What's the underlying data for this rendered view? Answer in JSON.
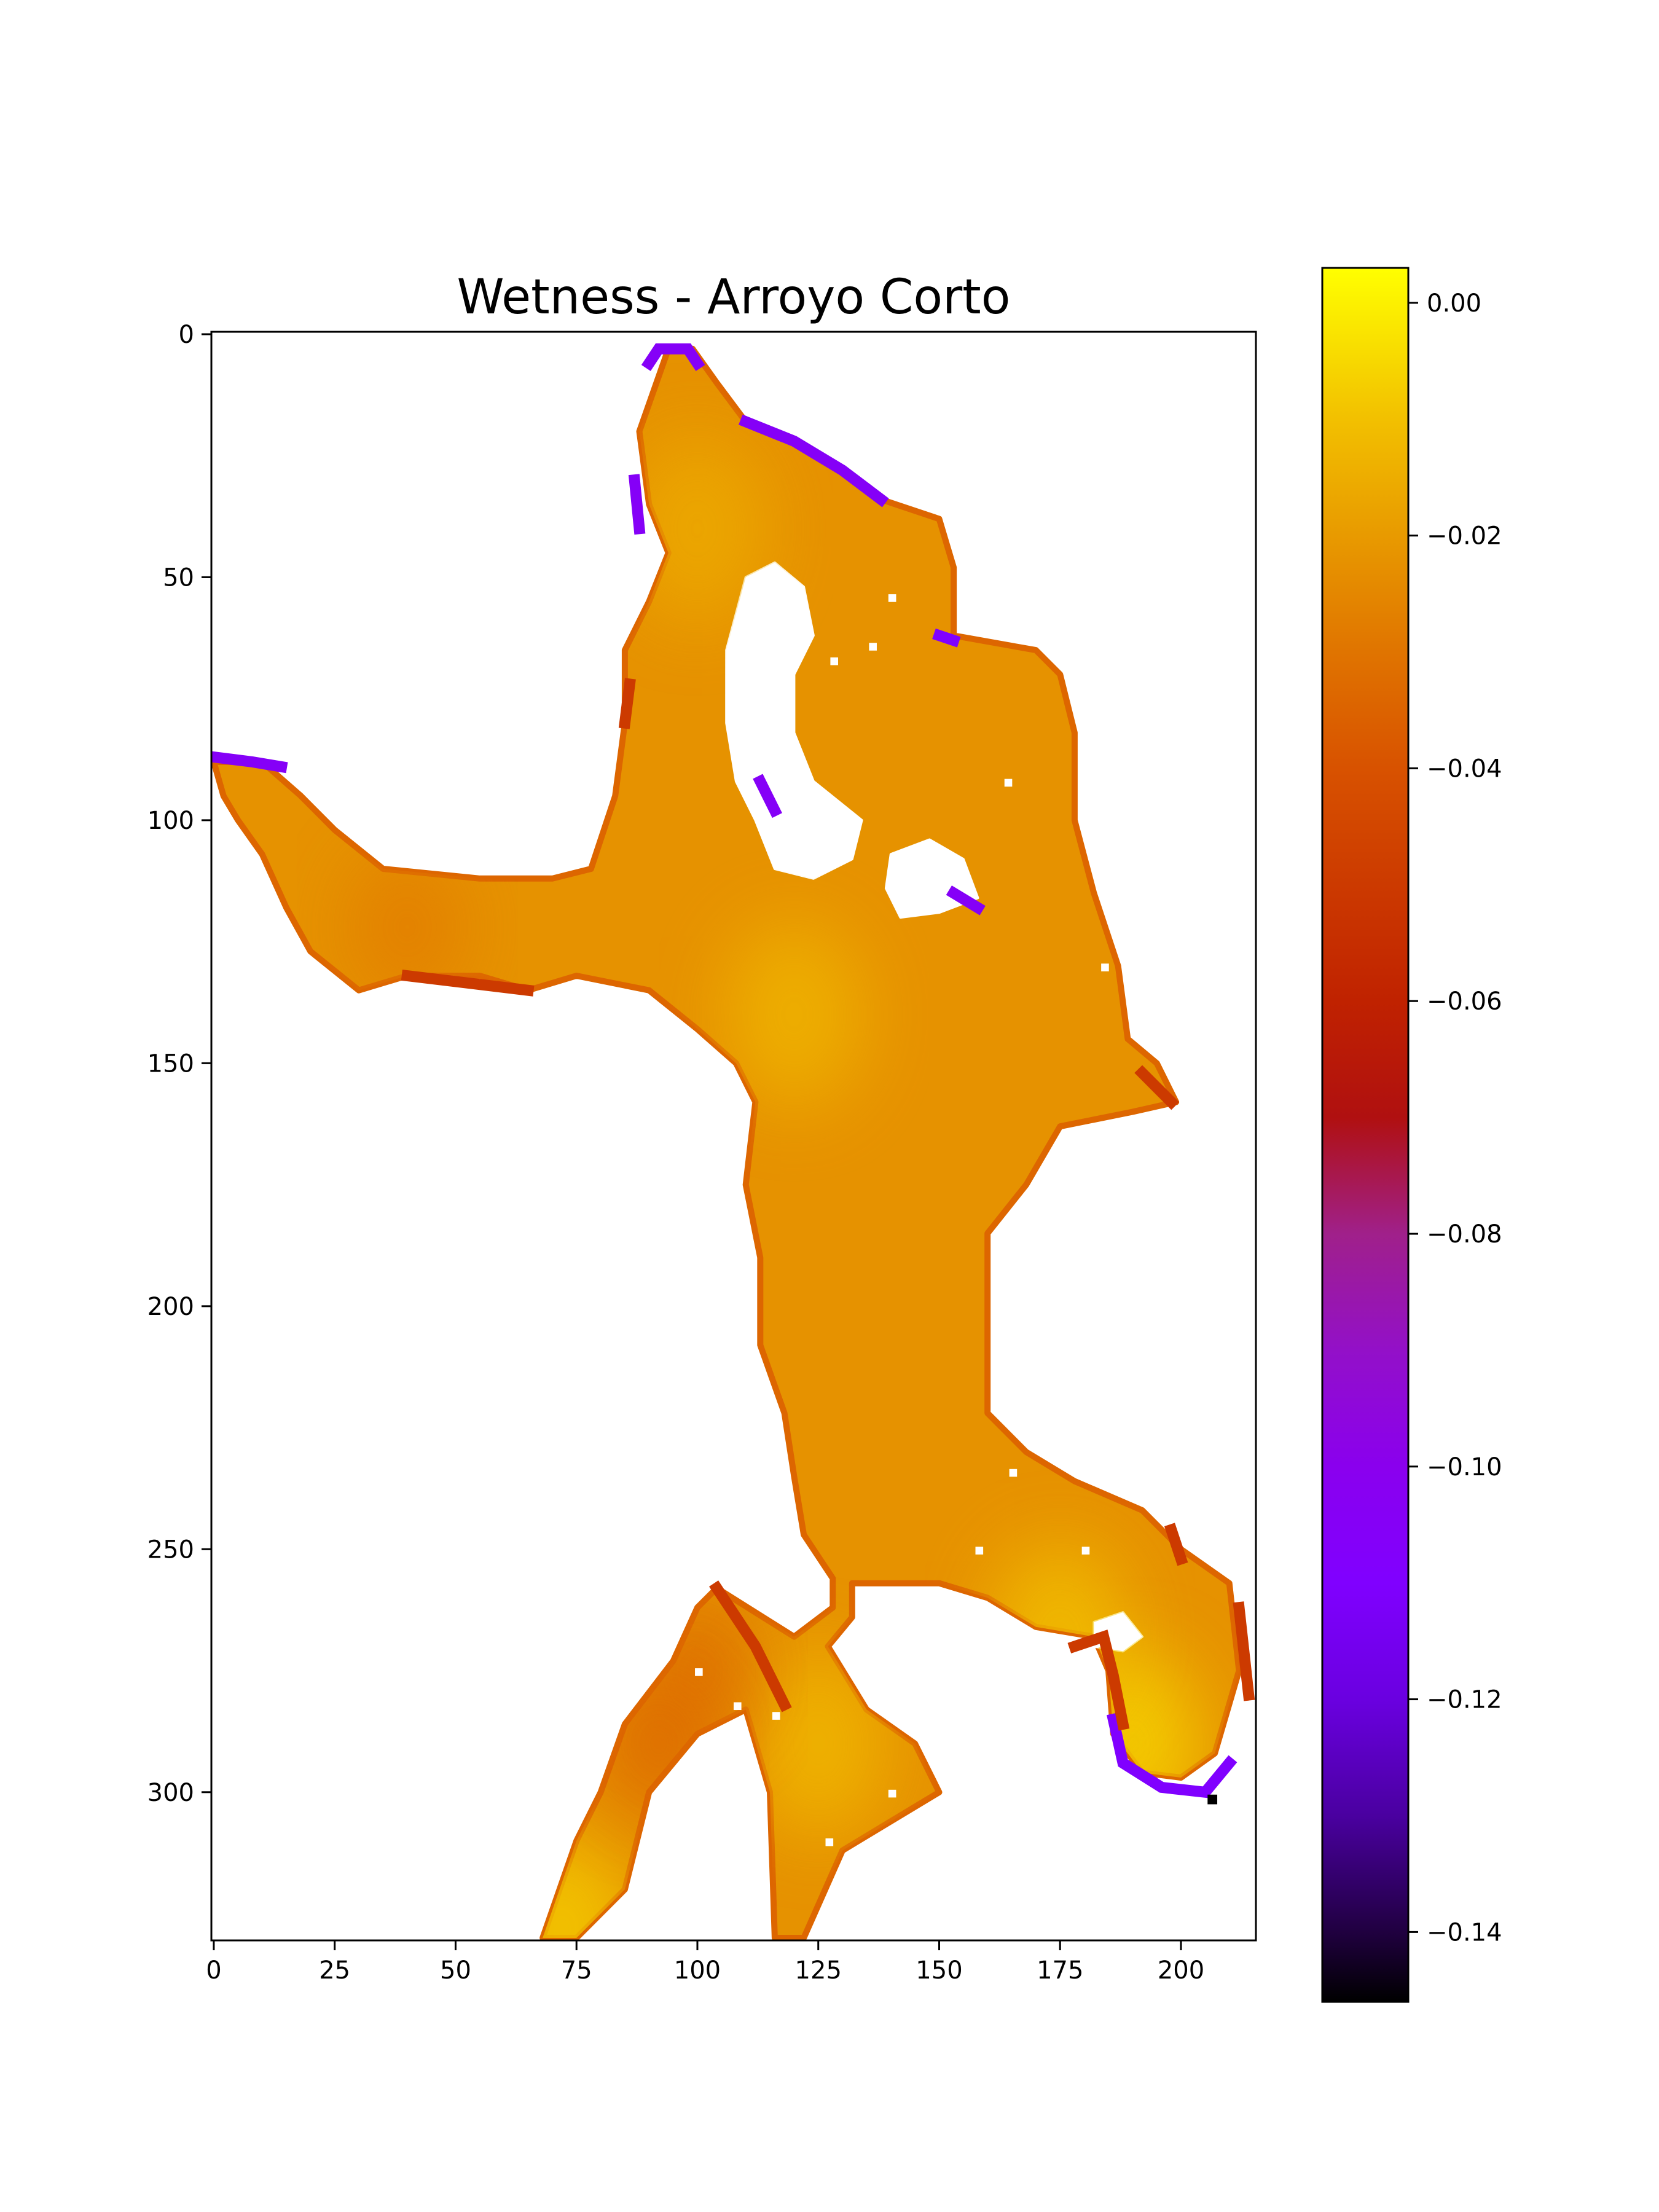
{
  "chart_data": {
    "type": "heatmap",
    "title": "Wetness - Arroyo Corto",
    "xlabel": "",
    "ylabel": "",
    "colormap": "gnuplot",
    "xlim": [
      -0.5,
      215.5
    ],
    "ylim": [
      330.5,
      -0.5
    ],
    "x_ticks": [
      0,
      25,
      50,
      75,
      100,
      125,
      150,
      175,
      200
    ],
    "x_tick_labels": [
      "0",
      "25",
      "50",
      "75",
      "100",
      "125",
      "150",
      "175",
      "200"
    ],
    "y_ticks": [
      0,
      50,
      100,
      150,
      200,
      250,
      300
    ],
    "y_tick_labels": [
      "0",
      "50",
      "100",
      "150",
      "200",
      "250",
      "300"
    ],
    "colorbar": {
      "min": -0.146,
      "max": 0.003,
      "ticks": [
        0.0,
        -0.02,
        -0.04,
        -0.06,
        -0.08,
        -0.1,
        -0.12,
        -0.14
      ],
      "tick_labels": [
        "0.00",
        "−0.02",
        "−0.04",
        "−0.06",
        "−0.08",
        "−0.10",
        "−0.12",
        "−0.14"
      ],
      "stops": [
        {
          "value": 0.003,
          "color": "#ffff00"
        },
        {
          "value": -0.01,
          "color": "#f2c000"
        },
        {
          "value": -0.02,
          "color": "#e89a00"
        },
        {
          "value": -0.03,
          "color": "#e07400"
        },
        {
          "value": -0.04,
          "color": "#d85200"
        },
        {
          "value": -0.05,
          "color": "#cc3a00"
        },
        {
          "value": -0.06,
          "color": "#c02200"
        },
        {
          "value": -0.07,
          "color": "#b01010"
        },
        {
          "value": -0.08,
          "color": "#a0208a"
        },
        {
          "value": -0.09,
          "color": "#9310c8"
        },
        {
          "value": -0.1,
          "color": "#8a00ee"
        },
        {
          "value": -0.11,
          "color": "#8000ff"
        },
        {
          "value": -0.12,
          "color": "#6a00e0"
        },
        {
          "value": -0.13,
          "color": "#4a00a0"
        },
        {
          "value": -0.14,
          "color": "#200040"
        },
        {
          "value": -0.146,
          "color": "#000000"
        }
      ]
    },
    "regions": [
      {
        "name": "lake-body",
        "value": -0.022,
        "outline": [
          [
            94,
            3
          ],
          [
            99,
            3
          ],
          [
            104,
            10
          ],
          [
            110,
            18
          ],
          [
            120,
            22
          ],
          [
            130,
            28
          ],
          [
            138,
            34
          ],
          [
            150,
            38
          ],
          [
            153,
            48
          ],
          [
            153,
            62
          ],
          [
            170,
            65
          ],
          [
            175,
            70
          ],
          [
            178,
            82
          ],
          [
            178,
            100
          ],
          [
            182,
            115
          ],
          [
            187,
            130
          ],
          [
            189,
            145
          ],
          [
            195,
            150
          ],
          [
            199,
            158
          ],
          [
            190,
            160
          ],
          [
            175,
            163
          ],
          [
            168,
            175
          ],
          [
            160,
            185
          ],
          [
            160,
            200
          ],
          [
            160,
            222
          ],
          [
            168,
            230
          ],
          [
            178,
            236
          ],
          [
            192,
            242
          ],
          [
            200,
            250
          ],
          [
            210,
            257
          ],
          [
            212,
            275
          ],
          [
            207,
            292
          ],
          [
            200,
            297
          ],
          [
            192,
            296
          ],
          [
            186,
            288
          ],
          [
            185,
            275
          ],
          [
            182,
            268
          ],
          [
            170,
            266
          ],
          [
            160,
            260
          ],
          [
            150,
            257
          ],
          [
            132,
            257
          ],
          [
            132,
            264
          ],
          [
            127,
            270
          ],
          [
            135,
            283
          ],
          [
            145,
            290
          ],
          [
            150,
            300
          ],
          [
            140,
            306
          ],
          [
            130,
            312
          ],
          [
            122,
            330
          ],
          [
            116,
            330
          ],
          [
            115,
            300
          ],
          [
            110,
            283
          ],
          [
            100,
            288
          ],
          [
            90,
            300
          ],
          [
            85,
            320
          ],
          [
            75,
            330
          ],
          [
            68,
            330
          ],
          [
            75,
            310
          ],
          [
            80,
            300
          ],
          [
            85,
            286
          ],
          [
            95,
            273
          ],
          [
            100,
            262
          ],
          [
            104,
            258
          ],
          [
            120,
            268
          ],
          [
            128,
            262
          ],
          [
            128,
            256
          ],
          [
            122,
            247
          ],
          [
            120,
            235
          ],
          [
            118,
            222
          ],
          [
            113,
            208
          ],
          [
            113,
            190
          ],
          [
            110,
            175
          ],
          [
            112,
            158
          ],
          [
            108,
            150
          ],
          [
            100,
            143
          ],
          [
            90,
            135
          ],
          [
            75,
            132
          ],
          [
            65,
            135
          ],
          [
            55,
            132
          ],
          [
            40,
            132
          ],
          [
            30,
            135
          ],
          [
            20,
            127
          ],
          [
            15,
            118
          ],
          [
            10,
            107
          ],
          [
            5,
            100
          ],
          [
            2,
            95
          ],
          [
            0,
            88
          ],
          [
            10,
            88
          ],
          [
            18,
            95
          ],
          [
            25,
            102
          ],
          [
            35,
            110
          ],
          [
            55,
            112
          ],
          [
            70,
            112
          ],
          [
            78,
            110
          ],
          [
            83,
            95
          ],
          [
            85,
            80
          ],
          [
            85,
            65
          ],
          [
            90,
            55
          ],
          [
            94,
            45
          ],
          [
            90,
            35
          ],
          [
            88,
            20
          ]
        ]
      },
      {
        "name": "interior-hole-north",
        "value": null,
        "outline": [
          [
            110,
            50
          ],
          [
            116,
            47
          ],
          [
            122,
            52
          ],
          [
            124,
            62
          ],
          [
            120,
            70
          ],
          [
            120,
            82
          ],
          [
            124,
            92
          ],
          [
            134,
            100
          ],
          [
            132,
            108
          ],
          [
            124,
            112
          ],
          [
            116,
            110
          ],
          [
            112,
            100
          ],
          [
            108,
            92
          ],
          [
            106,
            80
          ],
          [
            106,
            65
          ]
        ]
      },
      {
        "name": "interior-hole-small",
        "value": null,
        "outline": [
          [
            140,
            107
          ],
          [
            148,
            104
          ],
          [
            155,
            108
          ],
          [
            158,
            116
          ],
          [
            150,
            119
          ],
          [
            142,
            120
          ],
          [
            139,
            114
          ]
        ]
      },
      {
        "name": "interior-hole-southeast",
        "value": null,
        "outline": [
          [
            182,
            265
          ],
          [
            188,
            263
          ],
          [
            192,
            268
          ],
          [
            188,
            271
          ],
          [
            182,
            270
          ]
        ]
      }
    ],
    "gradient_hotspots": [
      {
        "x": 120,
        "y": 140,
        "value": -0.012
      },
      {
        "x": 100,
        "y": 40,
        "value": -0.015
      },
      {
        "x": 190,
        "y": 290,
        "value": -0.004
      },
      {
        "x": 175,
        "y": 268,
        "value": -0.009
      },
      {
        "x": 125,
        "y": 290,
        "value": -0.011
      },
      {
        "x": 72,
        "y": 328,
        "value": -0.006
      }
    ],
    "shaded_patches": [
      {
        "x": 100,
        "y": 275,
        "value": -0.032
      },
      {
        "x": 92,
        "y": 290,
        "value": -0.034
      },
      {
        "x": 40,
        "y": 122,
        "value": -0.028
      }
    ],
    "edge_segments": [
      {
        "value": -0.105,
        "points": [
          [
            90,
            6
          ],
          [
            92,
            3
          ],
          [
            98,
            3
          ],
          [
            100,
            6
          ]
        ]
      },
      {
        "value": -0.105,
        "points": [
          [
            110,
            18
          ],
          [
            120,
            22
          ],
          [
            130,
            28
          ],
          [
            138,
            34
          ]
        ]
      },
      {
        "value": -0.105,
        "points": [
          [
            87,
            30
          ],
          [
            88,
            40
          ]
        ]
      },
      {
        "value": -0.105,
        "points": [
          [
            0,
            87
          ],
          [
            8,
            88
          ],
          [
            14,
            89
          ]
        ]
      },
      {
        "value": -0.105,
        "points": [
          [
            113,
            92
          ],
          [
            116,
            98
          ]
        ]
      },
      {
        "value": -0.105,
        "points": [
          [
            153,
            115
          ],
          [
            158,
            118
          ]
        ]
      },
      {
        "value": -0.11,
        "points": [
          [
            186,
            285
          ],
          [
            188,
            294
          ],
          [
            196,
            299
          ],
          [
            205,
            300
          ],
          [
            210,
            294
          ]
        ]
      },
      {
        "value": -0.11,
        "points": [
          [
            150,
            62
          ],
          [
            153,
            63
          ]
        ]
      },
      {
        "value": -0.05,
        "points": [
          [
            178,
            270
          ],
          [
            184,
            268
          ],
          [
            186,
            276
          ],
          [
            188,
            286
          ]
        ]
      },
      {
        "value": -0.05,
        "points": [
          [
            212,
            262
          ],
          [
            214,
            280
          ]
        ]
      },
      {
        "value": -0.05,
        "points": [
          [
            104,
            258
          ],
          [
            112,
            270
          ],
          [
            118,
            282
          ]
        ]
      },
      {
        "value": -0.05,
        "points": [
          [
            85,
            80
          ],
          [
            86,
            72
          ]
        ]
      },
      {
        "value": -0.05,
        "points": [
          [
            198,
            246
          ],
          [
            200,
            252
          ]
        ]
      },
      {
        "value": -0.05,
        "points": [
          [
            192,
            152
          ],
          [
            198,
            158
          ]
        ]
      },
      {
        "value": -0.05,
        "points": [
          [
            40,
            132
          ],
          [
            65,
            135
          ]
        ]
      }
    ],
    "point_cells": [
      {
        "x": 206,
        "y": 301,
        "value": -0.146
      }
    ],
    "nodata_cells": [
      [
        140,
        54
      ],
      [
        136,
        64
      ],
      [
        128,
        67
      ],
      [
        164,
        92
      ],
      [
        165,
        234
      ],
      [
        158,
        250
      ],
      [
        180,
        250
      ],
      [
        140,
        300
      ],
      [
        127,
        310
      ],
      [
        108,
        282
      ],
      [
        116,
        284
      ],
      [
        184,
        130
      ],
      [
        100,
        275
      ]
    ]
  }
}
